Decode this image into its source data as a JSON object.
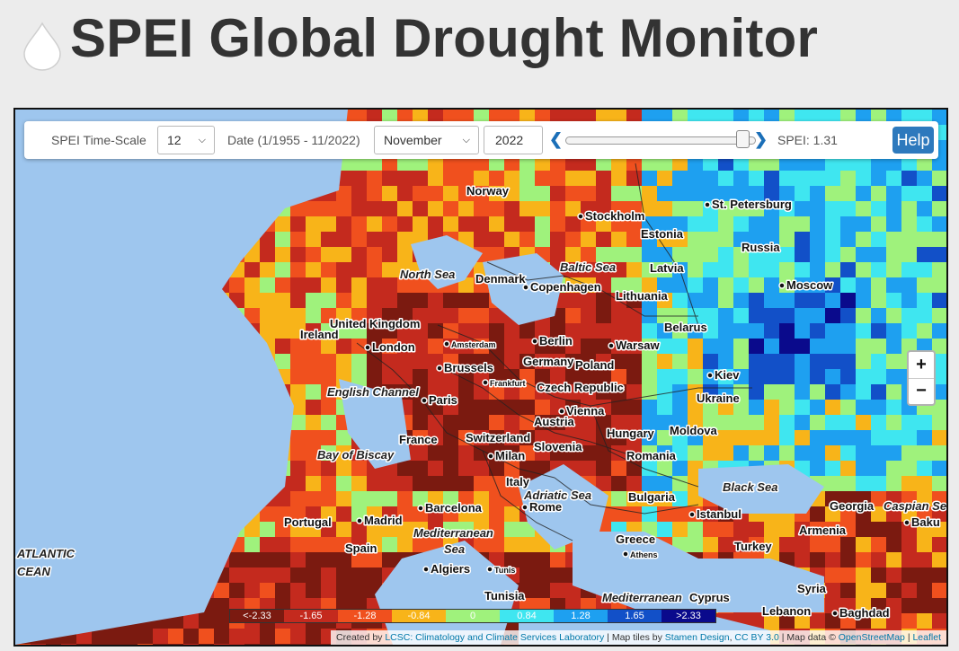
{
  "header": {
    "title": "SPEI Global Drought Monitor",
    "icon": "water-drop-icon"
  },
  "controls": {
    "timescale_label": "SPEI Time-Scale",
    "timescale_value": "12",
    "date_label": "Date (1/1955 - 11/2022)",
    "month_value": "November",
    "year_value": "2022",
    "prev_icon": "chevron-left-icon",
    "next_icon": "chevron-right-icon",
    "slider_fraction": 0.99,
    "spei_readout": "SPEI: 1.31",
    "help_label": "Help"
  },
  "zoom": {
    "in_label": "+",
    "out_label": "−"
  },
  "legend": [
    {
      "label": "<-2.33",
      "color": "#7b1a10"
    },
    {
      "label": "-1.65",
      "color": "#c42a1e"
    },
    {
      "label": "-1.28",
      "color": "#f0501e"
    },
    {
      "label": "-0.84",
      "color": "#f8b419"
    },
    {
      "label": "0",
      "color": "#9ff27c"
    },
    {
      "label": "0.84",
      "color": "#3fe6f0"
    },
    {
      "label": "1.28",
      "color": "#1ea0f0"
    },
    {
      "label": "1.65",
      "color": "#1250c8"
    },
    {
      "label": ">2.33",
      "color": "#0a0a8c"
    }
  ],
  "attribution": {
    "prefix": "Created by ",
    "lcsc_link": "LCSC: Climatology and Climate Services Laboratory",
    "middle": " | Map tiles by ",
    "stamen_link": "Stamen Design",
    "comma": ", ",
    "cc_link": "CC BY 3.0",
    "mapdata": " | Map data © ",
    "osm_link": "OpenStreetMap",
    "sep": " | ",
    "leaflet_link": "Leaflet"
  },
  "map_labels": {
    "countries": [
      "Norway",
      "Estonia",
      "Russia",
      "Latvia",
      "Denmark",
      "Lithuania",
      "United Kingdom",
      "Ireland",
      "Belarus",
      "Germany",
      "Poland",
      "Czech Republic",
      "Ukraine",
      "Austria",
      "Hungary",
      "Moldova",
      "France",
      "Switzerland",
      "Slovenia",
      "Romania",
      "Italy",
      "Bulgaria",
      "Portugal",
      "Spain",
      "Greece",
      "Turkey",
      "Georgia",
      "Armenia",
      "Tunisia",
      "Cyprus",
      "Syria",
      "Lebanon"
    ],
    "cities": [
      "Stockholm",
      "St. Petersburg",
      "Moscow",
      "Copenhagen",
      "Berlin",
      "London",
      "Amsterdam",
      "Warsaw",
      "Brussels",
      "Kiev",
      "Frankfurt",
      "Paris",
      "Vienna",
      "Milan",
      "Barcelona",
      "Rome",
      "Madrid",
      "Istanbul",
      "Baku",
      "Athens",
      "Algiers",
      "Tunis",
      "Baghdad"
    ],
    "seas": [
      "North Sea",
      "Baltic Sea",
      "English Channel",
      "Bay of Biscay",
      "Adriatic Sea",
      "Black Sea",
      "Caspian Se",
      "Mediterranean",
      "Sea",
      "Mediterranean",
      "ATLANTIC",
      "CEAN"
    ]
  }
}
